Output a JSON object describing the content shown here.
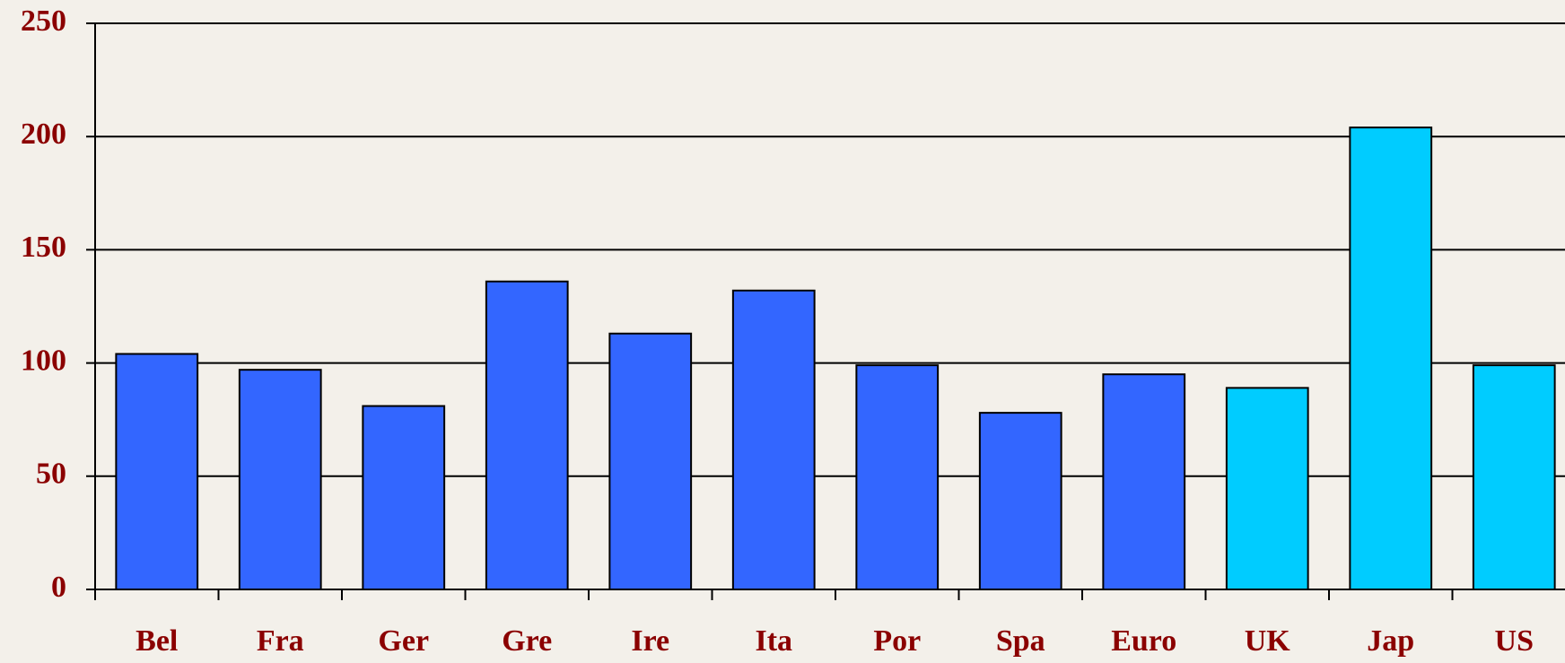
{
  "chart_data": {
    "type": "bar",
    "categories": [
      "Bel",
      "Fra",
      "Ger",
      "Gre",
      "Ire",
      "Ita",
      "Por",
      "Spa",
      "Euro",
      "UK",
      "Jap",
      "US"
    ],
    "values": [
      104,
      97,
      81,
      136,
      113,
      132,
      99,
      78,
      95,
      89,
      204,
      99
    ],
    "colors": [
      "#3366ff",
      "#3366ff",
      "#3366ff",
      "#3366ff",
      "#3366ff",
      "#3366ff",
      "#3366ff",
      "#3366ff",
      "#3366ff",
      "#00ccff",
      "#00ccff",
      "#00ccff"
    ],
    "ylim": [
      0,
      250
    ],
    "yticks": [
      0,
      50,
      100,
      150,
      200,
      250
    ],
    "grid": true
  }
}
